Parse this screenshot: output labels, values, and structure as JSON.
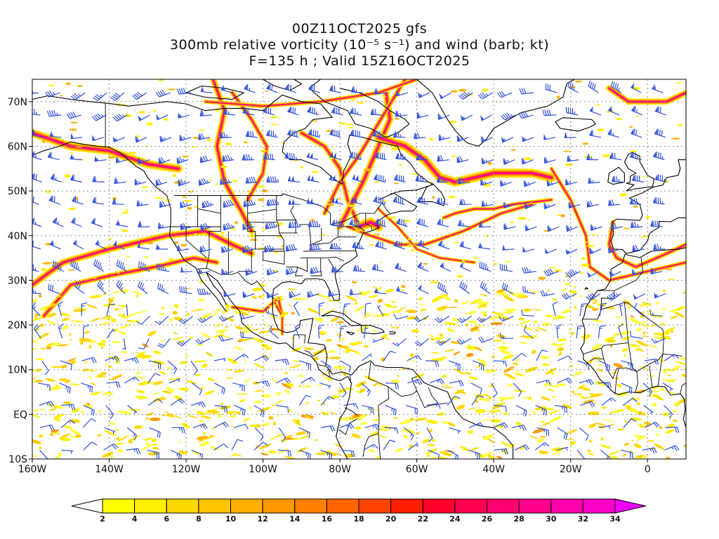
{
  "header": {
    "line1": "00Z11OCT2025 gfs",
    "line2": "300mb relative vorticity (10⁻⁵ s⁻¹) and wind (barb; kt)",
    "line3": "F=135 h ; Valid 15Z16OCT2025"
  },
  "map": {
    "lon_range": [
      -160,
      10
    ],
    "lat_range": [
      -10,
      75
    ],
    "lon_ticks": [
      {
        "lon": -160,
        "label": "160W"
      },
      {
        "lon": -140,
        "label": "140W"
      },
      {
        "lon": -120,
        "label": "120W"
      },
      {
        "lon": -100,
        "label": "100W"
      },
      {
        "lon": -80,
        "label": "80W"
      },
      {
        "lon": -60,
        "label": "60W"
      },
      {
        "lon": -40,
        "label": "40W"
      },
      {
        "lon": -20,
        "label": "20W"
      },
      {
        "lon": 0,
        "label": "0"
      }
    ],
    "lat_ticks": [
      {
        "lat": -10,
        "label": "10S"
      },
      {
        "lat": 0,
        "label": "EQ"
      },
      {
        "lat": 10,
        "label": "10N"
      },
      {
        "lat": 20,
        "label": "20N"
      },
      {
        "lat": 30,
        "label": "30N"
      },
      {
        "lat": 40,
        "label": "40N"
      },
      {
        "lat": 50,
        "label": "50N"
      },
      {
        "lat": 60,
        "label": "60N"
      },
      {
        "lat": 70,
        "label": "70N"
      }
    ],
    "grid": true,
    "barb_color": "#2f4fe0",
    "coast_color": "#000000"
  },
  "colorbar": {
    "levels": [
      2,
      4,
      6,
      8,
      10,
      12,
      14,
      16,
      18,
      20,
      22,
      24,
      26,
      28,
      30,
      32,
      34
    ],
    "colors": [
      "#ffff00",
      "#ffee00",
      "#ffd700",
      "#ffc400",
      "#ffae00",
      "#ff9800",
      "#ff8000",
      "#ff6400",
      "#ff4400",
      "#ff1e00",
      "#ff0028",
      "#ff0050",
      "#ff0070",
      "#ff008c",
      "#ff00aa",
      "#ff00c8",
      "#ff00e6",
      "#ee00ff"
    ],
    "under_color": "#ffffff",
    "low_color": "#e8ff32"
  }
}
